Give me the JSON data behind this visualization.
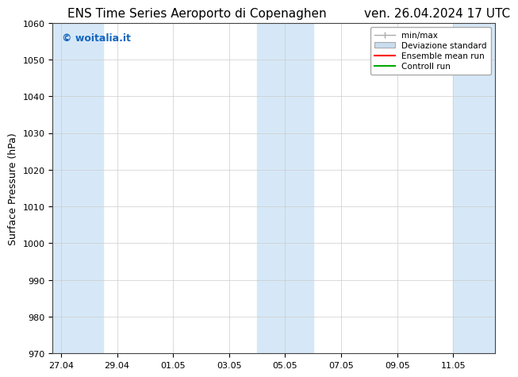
{
  "title_left": "ENS Time Series Aeroporto di Copenaghen",
  "title_right": "ven. 26.04.2024 17 UTC",
  "ylabel": "Surface Pressure (hPa)",
  "ylim": [
    970,
    1060
  ],
  "yticks": [
    970,
    980,
    990,
    1000,
    1010,
    1020,
    1030,
    1040,
    1050,
    1060
  ],
  "xtick_positions": [
    0,
    2,
    4,
    6,
    8,
    10,
    12,
    14
  ],
  "xtick_labels": [
    "27.04",
    "29.04",
    "01.05",
    "03.05",
    "05.05",
    "07.05",
    "09.05",
    "11.05"
  ],
  "xlim": [
    -0.3,
    15.5
  ],
  "shaded_bands": [
    {
      "xstart": -0.3,
      "xend": 1.5
    },
    {
      "xstart": 7.0,
      "xend": 9.0
    },
    {
      "xstart": 14.0,
      "xend": 15.5
    }
  ],
  "shaded_color": "#d6e8f7",
  "watermark_text": "© woitalia.it",
  "watermark_color": "#1565c0",
  "background_color": "#ffffff",
  "grid_color": "#cccccc",
  "legend_items": [
    {
      "label": "min/max",
      "color": "#aaaaaa",
      "style": "errorbar"
    },
    {
      "label": "Deviazione standard",
      "color": "#c8ddef",
      "style": "box"
    },
    {
      "label": "Ensemble mean run",
      "color": "#ff0000",
      "style": "line"
    },
    {
      "label": "Controll run",
      "color": "#00aa00",
      "style": "line"
    }
  ],
  "title_fontsize": 11,
  "axis_label_fontsize": 9,
  "tick_fontsize": 8,
  "font_family": "DejaVu Sans"
}
